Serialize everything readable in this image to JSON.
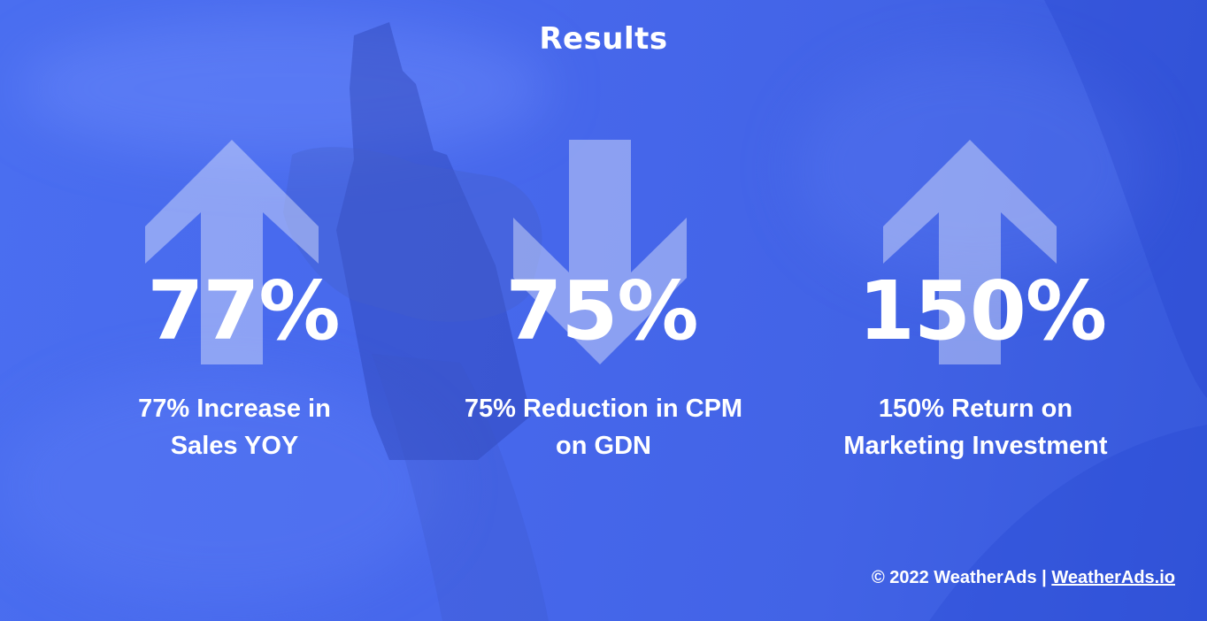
{
  "title": "Results",
  "accent_color": "#4a6ef0",
  "stats": [
    {
      "value": "77%",
      "arrow": "arrow-up-icon",
      "caption_line1": "77% Increase in",
      "caption_line2": "Sales YOY"
    },
    {
      "value": "75%",
      "arrow": "arrow-down-icon",
      "caption_line1": "75% Reduction in CPM",
      "caption_line2": "on GDN"
    },
    {
      "value": "150%",
      "arrow": "arrow-up-icon",
      "caption_line1": "150% Return on",
      "caption_line2": "Marketing Investment"
    }
  ],
  "footer": {
    "copyright": "© 2022 WeatherAds | ",
    "link_text": "WeatherAds.io"
  }
}
